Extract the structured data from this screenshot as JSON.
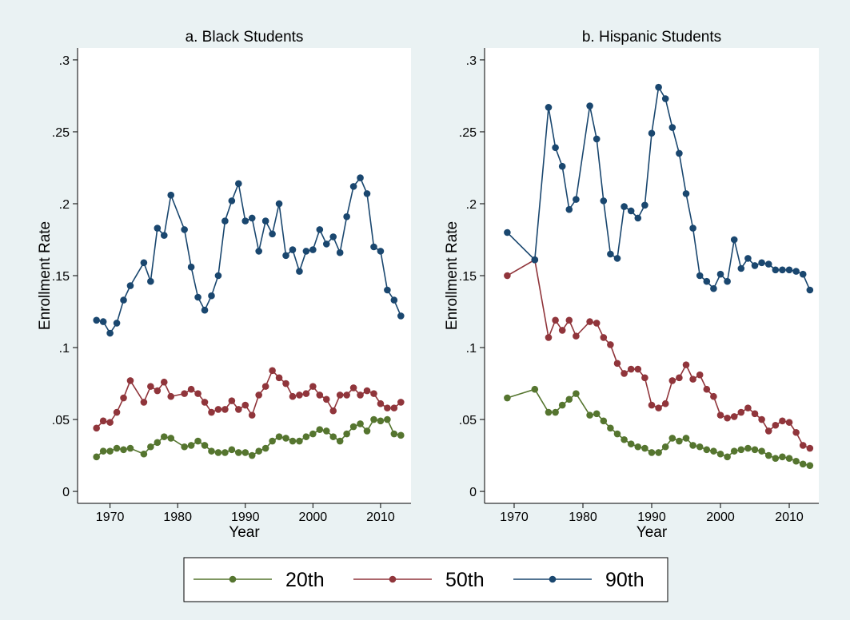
{
  "chart_data": [
    {
      "type": "line",
      "title": "a. Black Students",
      "xlabel": "Year",
      "ylabel": "Enrollment Rate",
      "x": [
        1968,
        1969,
        1970,
        1971,
        1972,
        1973,
        1975,
        1976,
        1977,
        1978,
        1979,
        1981,
        1982,
        1983,
        1984,
        1985,
        1986,
        1987,
        1988,
        1989,
        1990,
        1991,
        1992,
        1993,
        1994,
        1995,
        1996,
        1997,
        1998,
        1999,
        2000,
        2001,
        2002,
        2003,
        2004,
        2005,
        2006,
        2007,
        2008,
        2009,
        2010,
        2011,
        2012,
        2013
      ],
      "xlim": [
        1965.2,
        2014.5
      ],
      "xticks": [
        1970,
        1980,
        1990,
        2000,
        2010
      ],
      "ylim": [
        -0.0083,
        0.3083
      ],
      "yticks": [
        0,
        {
          "value": 0.05,
          "label": ".05"
        },
        {
          "value": 0.1,
          "label": ".1"
        },
        {
          "value": 0.15,
          "label": ".15"
        },
        {
          "value": 0.2,
          "label": ".2"
        },
        {
          "value": 0.25,
          "label": ".25"
        },
        {
          "value": 0.3,
          "label": ".3"
        }
      ],
      "series": [
        {
          "name": "20th",
          "color": "#55752f",
          "values": [
            0.024,
            0.028,
            0.028,
            0.03,
            0.029,
            0.03,
            0.026,
            0.031,
            0.034,
            0.038,
            0.037,
            0.031,
            0.032,
            0.035,
            0.032,
            0.028,
            0.027,
            0.027,
            0.029,
            0.027,
            0.027,
            0.025,
            0.028,
            0.03,
            0.035,
            0.038,
            0.037,
            0.035,
            0.035,
            0.038,
            0.04,
            0.043,
            0.042,
            0.038,
            0.035,
            0.04,
            0.045,
            0.047,
            0.042,
            0.05,
            0.049,
            0.05,
            0.04,
            0.039
          ]
        },
        {
          "name": "50th",
          "color": "#90353b",
          "values": [
            0.044,
            0.049,
            0.048,
            0.055,
            0.065,
            0.077,
            0.062,
            0.073,
            0.07,
            0.076,
            0.066,
            0.068,
            0.071,
            0.068,
            0.062,
            0.055,
            0.057,
            0.057,
            0.063,
            0.057,
            0.06,
            0.053,
            0.067,
            0.073,
            0.084,
            0.079,
            0.075,
            0.066,
            0.067,
            0.068,
            0.073,
            0.067,
            0.064,
            0.056,
            0.067,
            0.067,
            0.072,
            0.067,
            0.07,
            0.068,
            0.061,
            0.058,
            0.058,
            0.062
          ]
        },
        {
          "name": "90th",
          "color": "#1a476f",
          "values": [
            0.119,
            0.118,
            0.11,
            0.117,
            0.133,
            0.143,
            0.159,
            0.146,
            0.183,
            0.178,
            0.206,
            0.182,
            0.156,
            0.135,
            0.126,
            0.136,
            0.15,
            0.188,
            0.202,
            0.214,
            0.188,
            0.19,
            0.167,
            0.188,
            0.179,
            0.2,
            0.164,
            0.168,
            0.153,
            0.167,
            0.168,
            0.182,
            0.172,
            0.177,
            0.166,
            0.191,
            0.212,
            0.218,
            0.207,
            0.17,
            0.167,
            0.14,
            0.133,
            0.122
          ]
        }
      ]
    },
    {
      "type": "line",
      "title": "b. Hispanic Students",
      "xlabel": "Year",
      "ylabel": "Enrollment Rate",
      "x": [
        1969,
        1973,
        1975,
        1976,
        1977,
        1978,
        1979,
        1981,
        1982,
        1983,
        1984,
        1985,
        1986,
        1987,
        1988,
        1989,
        1990,
        1991,
        1992,
        1993,
        1994,
        1995,
        1996,
        1997,
        1998,
        1999,
        2000,
        2001,
        2002,
        2003,
        2004,
        2005,
        2006,
        2007,
        2008,
        2009,
        2010,
        2011,
        2012,
        2013
      ],
      "xlim": [
        1965.7,
        2014.3
      ],
      "xticks": [
        1970,
        1980,
        1990,
        2000,
        2010
      ],
      "ylim": [
        -0.0083,
        0.3083
      ],
      "yticks": [
        0,
        {
          "value": 0.05,
          "label": ".05"
        },
        {
          "value": 0.1,
          "label": ".1"
        },
        {
          "value": 0.15,
          "label": ".15"
        },
        {
          "value": 0.2,
          "label": ".2"
        },
        {
          "value": 0.25,
          "label": ".25"
        },
        {
          "value": 0.3,
          "label": ".3"
        }
      ],
      "series": [
        {
          "color": "#55752f",
          "values": [
            0.065,
            0.071,
            0.055,
            0.055,
            0.06,
            0.064,
            0.068,
            0.053,
            0.054,
            0.049,
            0.044,
            0.04,
            0.036,
            0.033,
            0.031,
            0.03,
            0.027,
            0.027,
            0.031,
            0.037,
            0.035,
            0.037,
            0.032,
            0.031,
            0.029,
            0.028,
            0.026,
            0.024,
            0.028,
            0.029,
            0.03,
            0.029,
            0.028,
            0.025,
            0.023,
            0.024,
            0.023,
            0.021,
            0.019,
            0.018
          ]
        },
        {
          "color": "#90353b",
          "values": [
            0.15,
            0.161,
            0.107,
            0.119,
            0.112,
            0.119,
            0.108,
            0.118,
            0.117,
            0.107,
            0.102,
            0.089,
            0.082,
            0.085,
            0.085,
            0.079,
            0.06,
            0.058,
            0.061,
            0.077,
            0.079,
            0.088,
            0.078,
            0.081,
            0.071,
            0.066,
            0.053,
            0.051,
            0.052,
            0.055,
            0.058,
            0.054,
            0.05,
            0.042,
            0.046,
            0.049,
            0.048,
            0.041,
            0.032,
            0.03
          ]
        },
        {
          "color": "#1a476f",
          "values": [
            0.18,
            0.161,
            0.267,
            0.239,
            0.226,
            0.196,
            0.203,
            0.268,
            0.245,
            0.202,
            0.165,
            0.162,
            0.198,
            0.195,
            0.19,
            0.199,
            0.249,
            0.281,
            0.273,
            0.253,
            0.235,
            0.207,
            0.183,
            0.15,
            0.146,
            0.141,
            0.151,
            0.146,
            0.175,
            0.155,
            0.162,
            0.157,
            0.159,
            0.158,
            0.154,
            0.154,
            0.154,
            0.153,
            0.151,
            0.14
          ]
        }
      ]
    }
  ]
}
